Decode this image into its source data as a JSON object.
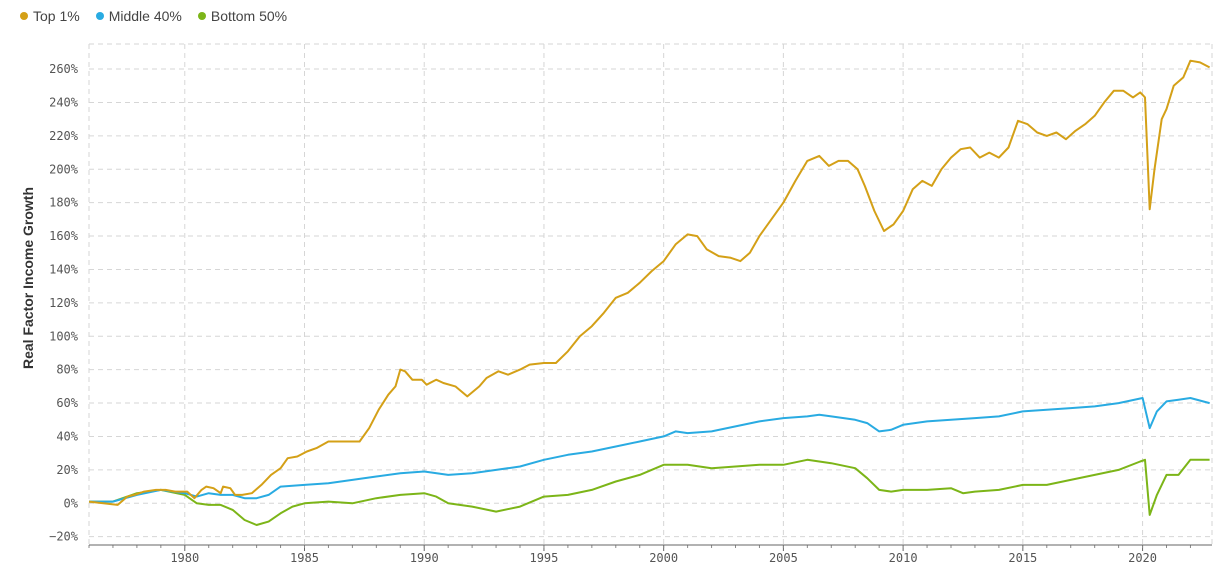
{
  "chart_data": {
    "type": "line",
    "title": "",
    "xlabel": "",
    "ylabel": "Real Factor Income Growth",
    "xlim": [
      1976,
      2022.9
    ],
    "ylim": [
      -25,
      275
    ],
    "x_ticks": [
      "1980",
      "1985",
      "1990",
      "1995",
      "2000",
      "2005",
      "2010",
      "2015",
      "2020"
    ],
    "y_ticks": [
      "260%",
      "240%",
      "220%",
      "200%",
      "180%",
      "160%",
      "140%",
      "120%",
      "100%",
      "80%",
      "60%",
      "40%",
      "20%",
      "0%",
      "−20%"
    ],
    "grid": true,
    "legend_position": "top-left",
    "series": [
      {
        "name": "Top 1%",
        "color": "#d4a017",
        "points": [
          [
            1976.0,
            1
          ],
          [
            1976.6,
            0
          ],
          [
            1977.2,
            -1
          ],
          [
            1977.6,
            4
          ],
          [
            1977.9,
            5
          ],
          [
            1978.3,
            7
          ],
          [
            1978.8,
            8
          ],
          [
            1979.2,
            8
          ],
          [
            1979.6,
            7
          ],
          [
            1980.1,
            7
          ],
          [
            1980.4,
            3
          ],
          [
            1980.7,
            8
          ],
          [
            1980.9,
            10
          ],
          [
            1981.2,
            9
          ],
          [
            1981.5,
            6
          ],
          [
            1981.6,
            10
          ],
          [
            1981.9,
            9
          ],
          [
            1982.1,
            5
          ],
          [
            1982.4,
            5
          ],
          [
            1982.8,
            6
          ],
          [
            1983.2,
            11
          ],
          [
            1983.6,
            17
          ],
          [
            1984.0,
            21
          ],
          [
            1984.3,
            27
          ],
          [
            1984.7,
            28
          ],
          [
            1985.1,
            31
          ],
          [
            1985.5,
            33
          ],
          [
            1986.0,
            37
          ],
          [
            1986.5,
            37
          ],
          [
            1986.9,
            37
          ],
          [
            1987.3,
            37
          ],
          [
            1987.7,
            45
          ],
          [
            1988.1,
            56
          ],
          [
            1988.5,
            65
          ],
          [
            1988.8,
            70
          ],
          [
            1989.0,
            80
          ],
          [
            1989.2,
            79
          ],
          [
            1989.5,
            74
          ],
          [
            1989.9,
            74
          ],
          [
            1990.1,
            71
          ],
          [
            1990.5,
            74
          ],
          [
            1990.8,
            72
          ],
          [
            1991.3,
            70
          ],
          [
            1991.8,
            64
          ],
          [
            1992.3,
            70
          ],
          [
            1992.6,
            75
          ],
          [
            1993.1,
            79
          ],
          [
            1993.5,
            77
          ],
          [
            1994.0,
            80
          ],
          [
            1994.4,
            83
          ],
          [
            1995.0,
            84
          ],
          [
            1995.5,
            84
          ],
          [
            1996.0,
            91
          ],
          [
            1996.5,
            100
          ],
          [
            1997.0,
            106
          ],
          [
            1997.5,
            114
          ],
          [
            1998.0,
            123
          ],
          [
            1998.5,
            126
          ],
          [
            1999.0,
            132
          ],
          [
            1999.5,
            139
          ],
          [
            2000.0,
            145
          ],
          [
            2000.5,
            155
          ],
          [
            2001.0,
            161
          ],
          [
            2001.4,
            160
          ],
          [
            2001.8,
            152
          ],
          [
            2002.3,
            148
          ],
          [
            2002.8,
            147
          ],
          [
            2003.2,
            145
          ],
          [
            2003.6,
            150
          ],
          [
            2004.0,
            160
          ],
          [
            2004.5,
            170
          ],
          [
            2005.0,
            180
          ],
          [
            2005.5,
            193
          ],
          [
            2006.0,
            205
          ],
          [
            2006.5,
            208
          ],
          [
            2006.9,
            202
          ],
          [
            2007.3,
            205
          ],
          [
            2007.7,
            205
          ],
          [
            2008.1,
            200
          ],
          [
            2008.4,
            190
          ],
          [
            2008.8,
            175
          ],
          [
            2009.2,
            163
          ],
          [
            2009.6,
            167
          ],
          [
            2010.0,
            175
          ],
          [
            2010.4,
            188
          ],
          [
            2010.8,
            193
          ],
          [
            2011.2,
            190
          ],
          [
            2011.6,
            200
          ],
          [
            2012.0,
            207
          ],
          [
            2012.4,
            212
          ],
          [
            2012.8,
            213
          ],
          [
            2013.2,
            207
          ],
          [
            2013.6,
            210
          ],
          [
            2014.0,
            207
          ],
          [
            2014.4,
            213
          ],
          [
            2014.8,
            229
          ],
          [
            2015.2,
            227
          ],
          [
            2015.6,
            222
          ],
          [
            2016.0,
            220
          ],
          [
            2016.4,
            222
          ],
          [
            2016.8,
            218
          ],
          [
            2017.2,
            223
          ],
          [
            2017.6,
            227
          ],
          [
            2018.0,
            232
          ],
          [
            2018.4,
            240
          ],
          [
            2018.8,
            247
          ],
          [
            2019.2,
            247
          ],
          [
            2019.6,
            243
          ],
          [
            2019.9,
            246
          ],
          [
            2020.1,
            243
          ],
          [
            2020.3,
            176
          ],
          [
            2020.5,
            200
          ],
          [
            2020.8,
            230
          ],
          [
            2021.0,
            236
          ],
          [
            2021.3,
            250
          ],
          [
            2021.7,
            255
          ],
          [
            2022.0,
            265
          ],
          [
            2022.4,
            264
          ],
          [
            2022.8,
            261
          ]
        ]
      },
      {
        "name": "Middle 40%",
        "color": "#29abe2",
        "points": [
          [
            1976.0,
            1
          ],
          [
            1977.0,
            1
          ],
          [
            1978.0,
            5
          ],
          [
            1979.0,
            8
          ],
          [
            1980.0,
            6
          ],
          [
            1980.5,
            4
          ],
          [
            1981.0,
            6
          ],
          [
            1981.5,
            5
          ],
          [
            1982.0,
            5
          ],
          [
            1982.5,
            3
          ],
          [
            1983.0,
            3
          ],
          [
            1983.5,
            5
          ],
          [
            1984.0,
            10
          ],
          [
            1985.0,
            11
          ],
          [
            1986.0,
            12
          ],
          [
            1987.0,
            14
          ],
          [
            1988.0,
            16
          ],
          [
            1989.0,
            18
          ],
          [
            1990.0,
            19
          ],
          [
            1991.0,
            17
          ],
          [
            1992.0,
            18
          ],
          [
            1993.0,
            20
          ],
          [
            1994.0,
            22
          ],
          [
            1995.0,
            26
          ],
          [
            1996.0,
            29
          ],
          [
            1997.0,
            31
          ],
          [
            1998.0,
            34
          ],
          [
            1999.0,
            37
          ],
          [
            2000.0,
            40
          ],
          [
            2000.5,
            43
          ],
          [
            2001.0,
            42
          ],
          [
            2002.0,
            43
          ],
          [
            2003.0,
            46
          ],
          [
            2004.0,
            49
          ],
          [
            2005.0,
            51
          ],
          [
            2006.0,
            52
          ],
          [
            2006.5,
            53
          ],
          [
            2007.0,
            52
          ],
          [
            2008.0,
            50
          ],
          [
            2008.5,
            48
          ],
          [
            2009.0,
            43
          ],
          [
            2009.5,
            44
          ],
          [
            2010.0,
            47
          ],
          [
            2011.0,
            49
          ],
          [
            2012.0,
            50
          ],
          [
            2013.0,
            51
          ],
          [
            2014.0,
            52
          ],
          [
            2015.0,
            55
          ],
          [
            2016.0,
            56
          ],
          [
            2017.0,
            57
          ],
          [
            2018.0,
            58
          ],
          [
            2019.0,
            60
          ],
          [
            2020.0,
            63
          ],
          [
            2020.3,
            45
          ],
          [
            2020.6,
            55
          ],
          [
            2021.0,
            61
          ],
          [
            2021.5,
            62
          ],
          [
            2022.0,
            63
          ],
          [
            2022.8,
            60
          ]
        ]
      },
      {
        "name": "Bottom 50%",
        "color": "#7cb518",
        "points": [
          [
            1976.0,
            1
          ],
          [
            1977.0,
            1
          ],
          [
            1978.0,
            6
          ],
          [
            1979.0,
            8
          ],
          [
            1980.0,
            5
          ],
          [
            1980.5,
            0
          ],
          [
            1981.0,
            -1
          ],
          [
            1981.5,
            -1
          ],
          [
            1982.0,
            -4
          ],
          [
            1982.5,
            -10
          ],
          [
            1983.0,
            -13
          ],
          [
            1983.5,
            -11
          ],
          [
            1984.0,
            -6
          ],
          [
            1984.5,
            -2
          ],
          [
            1985.0,
            0
          ],
          [
            1986.0,
            1
          ],
          [
            1987.0,
            0
          ],
          [
            1988.0,
            3
          ],
          [
            1989.0,
            5
          ],
          [
            1990.0,
            6
          ],
          [
            1990.5,
            4
          ],
          [
            1991.0,
            0
          ],
          [
            1992.0,
            -2
          ],
          [
            1993.0,
            -5
          ],
          [
            1994.0,
            -2
          ],
          [
            1995.0,
            4
          ],
          [
            1996.0,
            5
          ],
          [
            1997.0,
            8
          ],
          [
            1998.0,
            13
          ],
          [
            1999.0,
            17
          ],
          [
            2000.0,
            23
          ],
          [
            2001.0,
            23
          ],
          [
            2002.0,
            21
          ],
          [
            2003.0,
            22
          ],
          [
            2004.0,
            23
          ],
          [
            2005.0,
            23
          ],
          [
            2006.0,
            26
          ],
          [
            2007.0,
            24
          ],
          [
            2008.0,
            21
          ],
          [
            2008.5,
            15
          ],
          [
            2009.0,
            8
          ],
          [
            2009.5,
            7
          ],
          [
            2010.0,
            8
          ],
          [
            2011.0,
            8
          ],
          [
            2012.0,
            9
          ],
          [
            2012.5,
            6
          ],
          [
            2013.0,
            7
          ],
          [
            2014.0,
            8
          ],
          [
            2015.0,
            11
          ],
          [
            2016.0,
            11
          ],
          [
            2017.0,
            14
          ],
          [
            2018.0,
            17
          ],
          [
            2019.0,
            20
          ],
          [
            2019.9,
            25
          ],
          [
            2020.1,
            26
          ],
          [
            2020.3,
            -7
          ],
          [
            2020.6,
            5
          ],
          [
            2021.0,
            17
          ],
          [
            2021.5,
            17
          ],
          [
            2022.0,
            26
          ],
          [
            2022.8,
            26
          ]
        ]
      }
    ]
  }
}
